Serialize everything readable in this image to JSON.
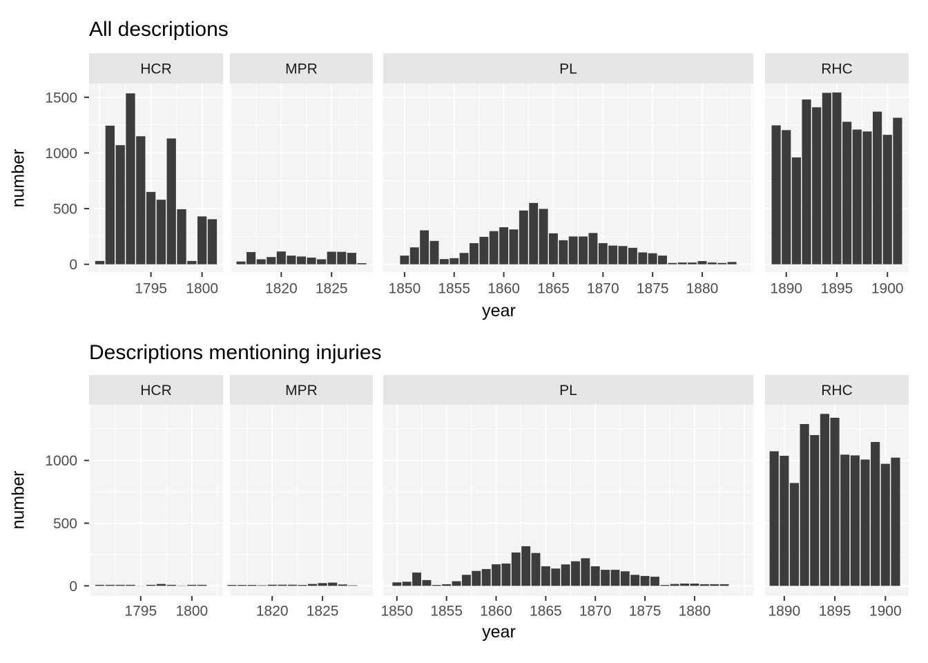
{
  "colors": {
    "bar": "#3c3c3c",
    "panel_bg": "#f4f4f4",
    "strip_bg": "#e6e6e6",
    "grid": "#ffffff",
    "axis_text": "#4d4d4d",
    "tick_mark": "#333333",
    "title_text": "#000000"
  },
  "chart_data": [
    {
      "type": "bar",
      "title": "All descriptions",
      "xlabel": "year",
      "ylabel": "number",
      "y_ticks": [
        0,
        500,
        1000,
        1500
      ],
      "ylim": [
        0,
        1620
      ],
      "legend": "none",
      "grid": "on",
      "facets": [
        {
          "label": "HCR",
          "start_year": 1790,
          "ticks": [
            1795,
            1800
          ],
          "xlim": [
            1788.95,
            1802.05
          ],
          "values": [
            30,
            1245,
            1070,
            1535,
            1150,
            650,
            580,
            1130,
            495,
            30,
            430,
            405
          ]
        },
        {
          "label": "MPR",
          "start_year": 1816,
          "ticks": [
            1820,
            1825
          ],
          "xlim": [
            1814.9,
            1829.1
          ],
          "values": [
            25,
            110,
            45,
            65,
            115,
            78,
            70,
            60,
            45,
            113,
            112,
            103,
            10
          ]
        },
        {
          "label": "PL",
          "start_year": 1850,
          "ticks": [
            1850,
            1855,
            1860,
            1865,
            1870,
            1875,
            1880
          ],
          "xlim": [
            1847.85,
            1885.15
          ],
          "values": [
            78,
            152,
            305,
            210,
            47,
            55,
            102,
            190,
            247,
            298,
            333,
            313,
            483,
            551,
            498,
            278,
            216,
            250,
            250,
            281,
            190,
            168,
            164,
            148,
            107,
            99,
            78,
            12,
            16,
            16,
            29,
            16,
            12,
            21
          ]
        },
        {
          "label": "RHC",
          "start_year": 1889,
          "ticks": [
            1890,
            1895,
            1900
          ],
          "xlim": [
            1887.9,
            1902.1
          ],
          "values": [
            1248,
            1205,
            960,
            1480,
            1410,
            1540,
            1543,
            1280,
            1210,
            1193,
            1371,
            1163,
            1316
          ]
        }
      ]
    },
    {
      "type": "bar",
      "title": "Descriptions mentioning injuries",
      "xlabel": "year",
      "ylabel": "number",
      "y_ticks": [
        0,
        500,
        1000
      ],
      "ylim": [
        0,
        1444
      ],
      "legend": "none",
      "grid": "on",
      "facets": [
        {
          "label": "HCR",
          "start_year": 1791,
          "ticks": [
            1795,
            1800
          ],
          "xlim": [
            1789.95,
            1803.05
          ],
          "values": [
            8,
            8,
            8,
            8,
            1,
            8,
            15,
            8,
            2,
            8,
            8
          ]
        },
        {
          "label": "MPR",
          "start_year": 1816,
          "ticks": [
            1820,
            1825
          ],
          "xlim": [
            1815.8,
            1830.0
          ],
          "values": [
            7,
            7,
            7,
            4,
            9,
            9,
            9,
            7,
            15,
            22,
            26,
            11,
            4
          ]
        },
        {
          "label": "PL",
          "start_year": 1850,
          "ticks": [
            1850,
            1855,
            1860,
            1865,
            1870,
            1875,
            1880
          ],
          "xlim": [
            1848.62,
            1885.92
          ],
          "values": [
            28,
            33,
            106,
            46,
            7,
            13,
            37,
            88,
            119,
            134,
            172,
            178,
            266,
            316,
            262,
            156,
            138,
            171,
            196,
            220,
            156,
            128,
            128,
            116,
            88,
            79,
            73,
            7,
            15,
            18,
            18,
            13,
            13,
            13
          ]
        },
        {
          "label": "RHC",
          "start_year": 1889,
          "ticks": [
            1890,
            1895,
            1900
          ],
          "xlim": [
            1888.1,
            1902.3
          ],
          "values": [
            1073,
            1037,
            820,
            1290,
            1202,
            1371,
            1340,
            1046,
            1040,
            1007,
            1147,
            973,
            1022
          ]
        }
      ]
    }
  ]
}
